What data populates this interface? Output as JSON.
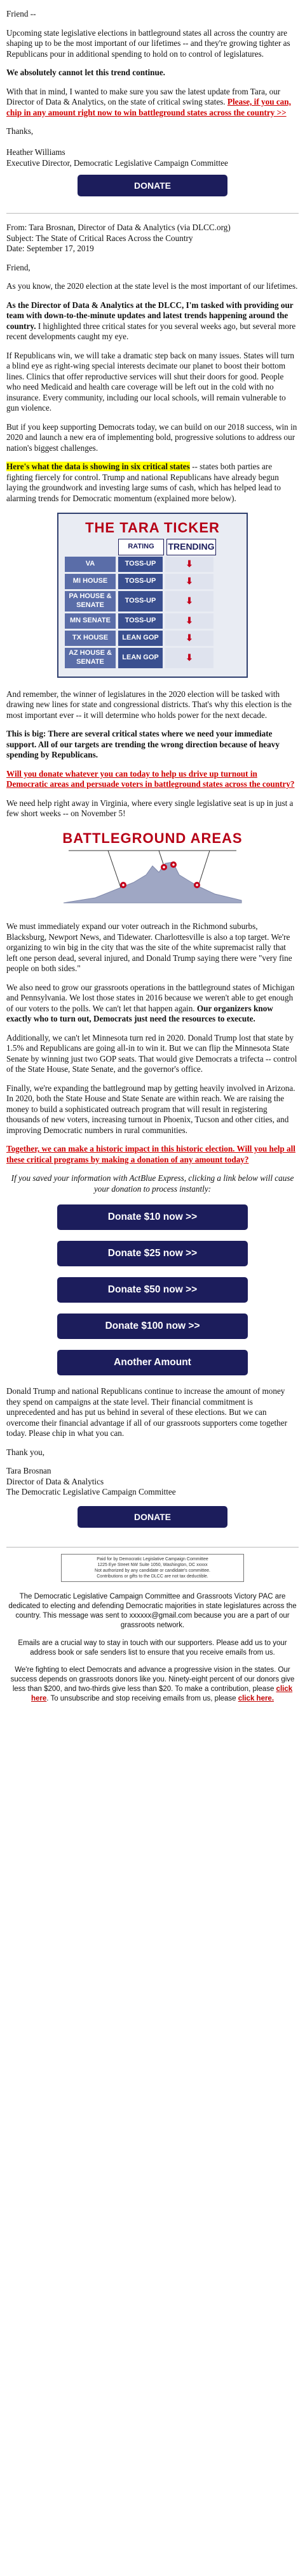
{
  "intro": {
    "greeting": "Friend --",
    "p1": "Upcoming state legislative elections in battleground states all across the country are shaping up to be the most important of our lifetimes -- and they're growing tighter as Republicans pour in additional spending to hold on to control of legislatures.",
    "p2": "We absolutely cannot let this trend continue.",
    "p3_plain": "With that in mind, I wanted to make sure you saw the latest update from Tara, our Director of Data & Analytics, on the state of critical swing states. ",
    "p3_link": "Please, if you can, chip in any amount right now to win battleground states across the country >>",
    "signoff": "Thanks,",
    "signer_name": "Heather Williams",
    "signer_title": "Executive Director, Democratic Legislative Campaign Committee",
    "donate_button": "DONATE"
  },
  "forwarded": {
    "from": "From: Tara Brosnan, Director of Data & Analytics (via DLCC.org)",
    "subject": "Subject: The State of Critical Races Across the Country",
    "date": "Date: September 17, 2019",
    "greeting": "Friend,",
    "p1": "As you know, the 2020 election at the state level is the most important of our lifetimes.",
    "p2_bold": "As the Director of Data & Analytics at the DLCC, I'm tasked with providing our team with down-to-the-minute updates and latest trends happening around the country.",
    "p2_rest": " I highlighted three critical states for you several weeks ago, but several more recent developments caught my eye.",
    "p3": "If Republicans win, we will take a dramatic step back on many issues. States will turn a blind eye as right-wing special interests decimate our planet to boost their bottom lines. Clinics that offer reproductive services will shut their doors for good. People who need Medicaid and health care coverage will be left out in the cold with no insurance. Every community, including our local schools, will remain vulnerable to gun violence.",
    "p4": "But if you keep supporting Democrats today, we can build on our 2018 success, win in 2020 and launch a new era of implementing bold, progressive solutions to address our nation's biggest challenges.",
    "p5_hl": "Here's what the data is showing in six critical states",
    "p5_rest": " -- states both parties are fighting fiercely for control. Trump and national Republicans have already begun laying the groundwork and investing large sums of cash, which has helped lead to alarming trends for Democratic momentum (explained more below)."
  },
  "ticker": {
    "title": "THE TARA TICKER",
    "col_rating": "RATING",
    "col_trending": "TRENDING",
    "rows": [
      {
        "state": "VA",
        "rating": "TOSS-UP",
        "trend": "⬇"
      },
      {
        "state": "MI HOUSE",
        "rating": "TOSS-UP",
        "trend": "⬇"
      },
      {
        "state": "PA HOUSE & SENATE",
        "rating": "TOSS-UP",
        "trend": "⬇"
      },
      {
        "state": "MN SENATE",
        "rating": "TOSS-UP",
        "trend": "⬇"
      },
      {
        "state": "TX HOUSE",
        "rating": "LEAN GOP",
        "trend": "⬇"
      },
      {
        "state": "AZ HOUSE & SENATE",
        "rating": "LEAN GOP",
        "trend": "⬇"
      }
    ]
  },
  "body": {
    "p1": "And remember, the winner of legislatures in the 2020 election will be tasked with drawing new lines for state and congressional districts. That's why this election is the most important ever -- it will determine who holds power for the next decade.",
    "p2": "This is big: There are several critical states where we need your immediate support. All of our targets are trending the wrong direction because of heavy spending by Republicans.",
    "p3_link": "Will you donate whatever you can today to help us drive up turnout in Democratic areas and persuade voters in battleground states across the country?",
    "p4": "We need help right away in Virginia, where every single legislative seat is up in just a few short weeks -- on November 5!",
    "bg_title": "BATTLEGROUND AREAS",
    "p5": "We must immediately expand our voter outreach in the Richmond suburbs, Blacksburg, Newport News, and Tidewater. Charlottesville is also a top target. We're organizing to win big in the city that was the site of the white supremacist rally that left one person dead, several injured, and Donald Trump saying there were \"very fine people on both sides.\"",
    "p6_plain": "We also need to grow our grassroots operations in the battleground states of Michigan and Pennsylvania. We lost those states in 2016 because we weren't able to get enough of our voters to the polls. We can't let that happen again. ",
    "p6_bold": "Our organizers know exactly who to turn out, Democrats just need the resources to execute.",
    "p7": "Additionally, we can't let Minnesota turn red in 2020. Donald Trump lost that state by 1.5% and Republicans are going all-in to win it. But we can flip the Minnesota State Senate by winning just two GOP seats. That would give Democrats a trifecta -- control of the State House, State Senate, and the governor's office.",
    "p8": "Finally, we're expanding the battleground map by getting heavily involved in Arizona. In 2020, both the State House and State Senate are within reach. We are raising the money to build a sophisticated outreach program that will result in registering thousands of new voters, increasing turnout in Phoenix, Tucson and other cities, and improving Democratic numbers in rural communities.",
    "p9_link": "Together, we can make a historic impact in this historic election. Will you help all these critical programs by making a donation of any amount today?",
    "p10": "If you saved your information with ActBlue Express, clicking a link below will cause your donation to process instantly:",
    "amounts": [
      "Donate $10 now >>",
      "Donate $25 now >>",
      "Donate $50 now >>",
      "Donate $100 now >>",
      "Another Amount"
    ],
    "p11": "Donald Trump and national Republicans continue to increase the amount of money they spend on campaigns at the state level. Their financial commitment is unprecedented and has put us behind in several of these elections. But we can overcome their financial advantage if all of our grassroots supporters come together today. Please chip in what you can.",
    "thanks": "Thank you,",
    "sig_name": "Tara Brosnan",
    "sig_title": "Director of Data & Analytics",
    "sig_org": "The Democratic Legislative Campaign Committee",
    "donate_button": "DONATE"
  },
  "paid_for": {
    "line1": "Paid for by Democratic Legislative Campaign Committee",
    "line2": "1225 Eye Street NW Suite 1050, Washington, DC xxxxx",
    "line3": "Not authorized by any candidate or candidate's committee.",
    "line4": "Contributions or gifts to the DLCC are not tax deductible."
  },
  "footer": {
    "p1": "The Democratic Legislative Campaign Committee and Grassroots Victory PAC are dedicated to electing and defending Democratic majorities in state legislatures across the country. This message was sent to xxxxxx@gmail.com because you are a part of our grassroots network.",
    "p2": "Emails are a crucial way to stay in touch with our supporters. Please add us to your address book or safe senders list to ensure that you receive emails from us.",
    "p3_a": "We're fighting to elect Democrats and advance a progressive vision in the states. Our success depends on grassroots donors like you. Ninety-eight percent of our donors give less than $200, and two-thirds give less than $20. To make a contribution, please ",
    "p3_link1": "click here",
    "p3_b": ". To unsubscribe and stop receiving emails from us, please ",
    "p3_link2": "click here.",
    "p3_c": ""
  },
  "colors": {
    "navy": "#1c1d5c",
    "red": "#d00000",
    "highlight": "#ffff00"
  }
}
